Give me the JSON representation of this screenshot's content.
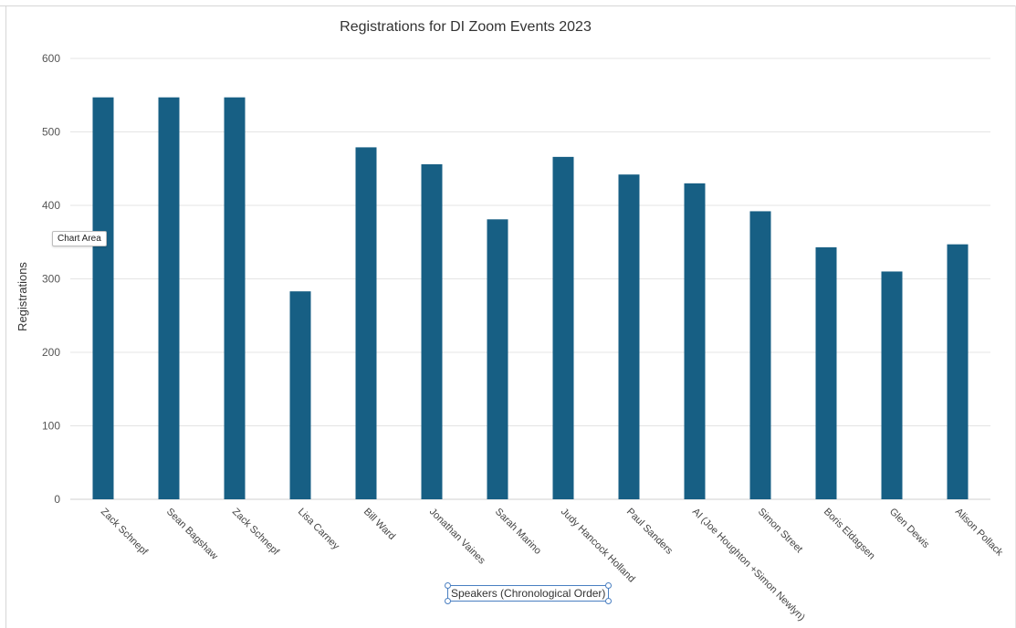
{
  "chart_data": {
    "type": "bar",
    "title": "Registrations for DI Zoom Events 2023",
    "ylabel": "Registrations",
    "xlabel": "Speakers (Chronological Order)",
    "ylim": [
      0,
      600
    ],
    "yticks": [
      0,
      100,
      200,
      300,
      400,
      500,
      600
    ],
    "grid": true,
    "legend": "none",
    "bar_color": "#175f84",
    "categories": [
      "Zack Schnepf",
      "Sean Bagshaw",
      "Zack Schnepf",
      "Lisa Carney",
      "Bill Ward",
      "Jonathan Vaines",
      "Sarah Marino",
      "Judy Hancock Holland",
      "Paul Sanders",
      "AI (Joe Houghton +Simon Newlyn)",
      "Simon Street",
      "Boris Eldagsen",
      "Glen Dewis",
      "Alison Pollack"
    ],
    "values": [
      547,
      547,
      547,
      283,
      479,
      456,
      381,
      466,
      442,
      430,
      392,
      343,
      310,
      347
    ]
  },
  "overlays": {
    "tooltip": "Chart Area"
  }
}
